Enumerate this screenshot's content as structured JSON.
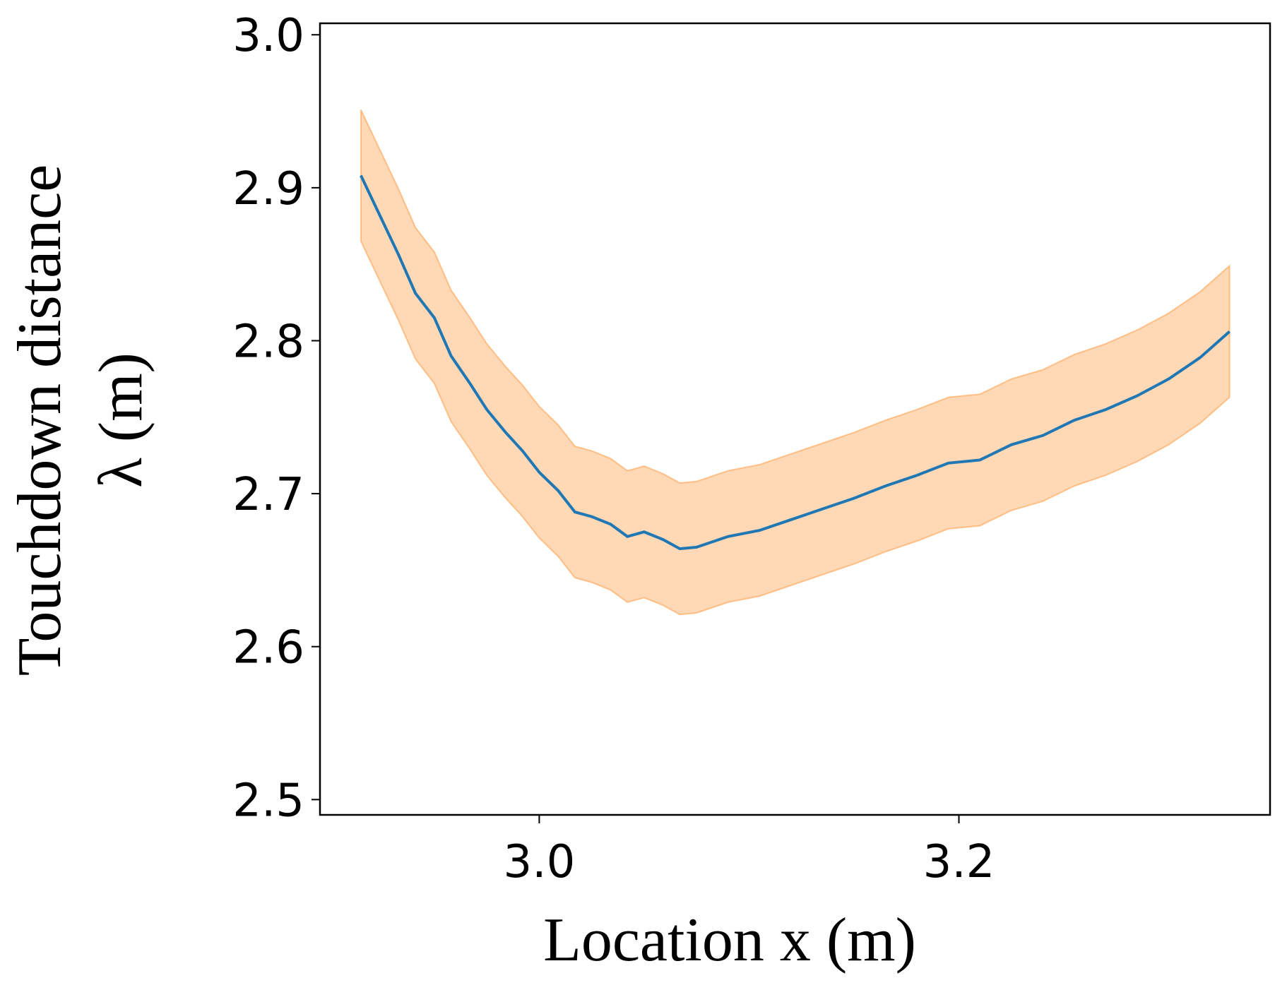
{
  "chart_data": {
    "type": "line",
    "xlabel": "Location x (m)",
    "ylabel": [
      "Touchdown distance",
      "λ (m)"
    ],
    "xlim": [
      2.8955,
      3.3483
    ],
    "ylim": [
      2.49,
      3.0075
    ],
    "xticks": [
      3.0,
      3.2
    ],
    "yticks": [
      2.5,
      2.6,
      2.7,
      2.8,
      2.9,
      {
        "value": 3.0,
        "label": "3.0"
      }
    ],
    "x": [
      2.915,
      2.924,
      2.933,
      2.941,
      2.95,
      2.958,
      2.967,
      2.975,
      2.984,
      2.992,
      3.0,
      3.009,
      3.017,
      3.025,
      3.034,
      3.042,
      3.05,
      3.059,
      3.067,
      3.075,
      3.09,
      3.105,
      3.12,
      3.135,
      3.15,
      3.165,
      3.18,
      3.195,
      3.21,
      3.225,
      3.24,
      3.255,
      3.27,
      3.285,
      3.3,
      3.315,
      3.329
    ],
    "series": [
      {
        "color": "#1f77b4",
        "band_color": "#ff7f0e",
        "values": [
          2.908,
          2.882,
          2.856,
          2.831,
          2.815,
          2.79,
          2.772,
          2.755,
          2.74,
          2.728,
          2.714,
          2.702,
          2.688,
          2.685,
          2.68,
          2.672,
          2.675,
          2.67,
          2.664,
          2.665,
          2.672,
          2.676,
          2.683,
          2.69,
          2.697,
          2.705,
          2.712,
          2.72,
          2.722,
          2.732,
          2.738,
          2.748,
          2.755,
          2.764,
          2.775,
          2.789,
          2.806
        ],
        "upper": [
          2.951,
          2.925,
          2.899,
          2.874,
          2.858,
          2.833,
          2.815,
          2.798,
          2.783,
          2.771,
          2.757,
          2.745,
          2.731,
          2.728,
          2.723,
          2.715,
          2.718,
          2.713,
          2.707,
          2.708,
          2.715,
          2.719,
          2.726,
          2.733,
          2.74,
          2.748,
          2.755,
          2.763,
          2.765,
          2.775,
          2.781,
          2.791,
          2.798,
          2.807,
          2.818,
          2.832,
          2.849
        ],
        "lower": [
          2.865,
          2.839,
          2.813,
          2.788,
          2.772,
          2.747,
          2.729,
          2.712,
          2.697,
          2.685,
          2.671,
          2.659,
          2.645,
          2.642,
          2.637,
          2.629,
          2.632,
          2.627,
          2.621,
          2.622,
          2.629,
          2.633,
          2.64,
          2.647,
          2.654,
          2.662,
          2.669,
          2.677,
          2.679,
          2.689,
          2.695,
          2.705,
          2.712,
          2.721,
          2.732,
          2.746,
          2.763
        ]
      }
    ]
  }
}
